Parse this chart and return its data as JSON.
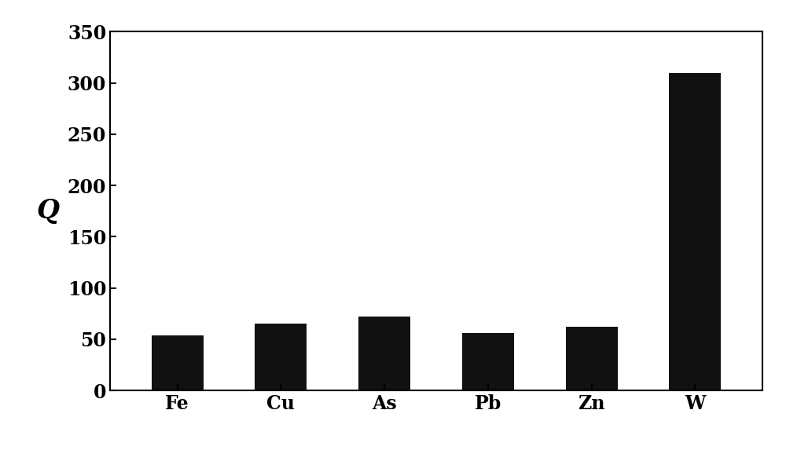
{
  "categories": [
    "Fe",
    "Cu",
    "As",
    "Pb",
    "Zn",
    "W"
  ],
  "values": [
    54,
    65,
    72,
    56,
    62,
    310
  ],
  "bar_color": "#111111",
  "ylabel": "Q",
  "ylim": [
    0,
    350
  ],
  "yticks": [
    0,
    50,
    100,
    150,
    200,
    250,
    300,
    350
  ],
  "background_color": "#ffffff",
  "bar_width": 0.5,
  "ylabel_fontsize": 24,
  "tick_fontsize": 17,
  "xlabel_fontsize": 17,
  "spine_linewidth": 1.5
}
